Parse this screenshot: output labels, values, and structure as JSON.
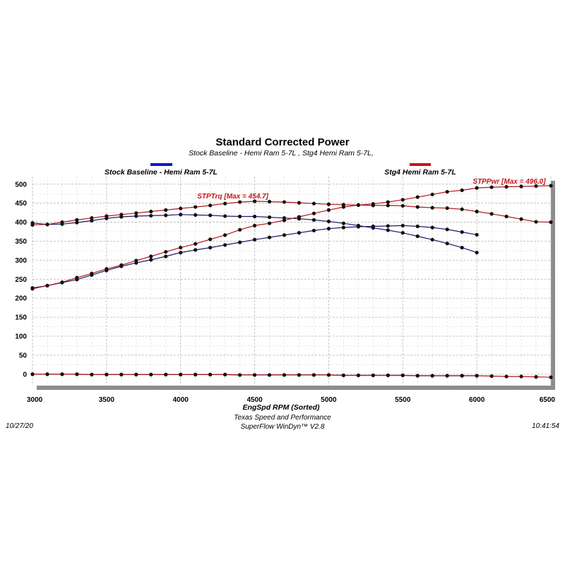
{
  "chart_data": {
    "type": "line",
    "title": "Standard Corrected Power",
    "subtitle": "Stock Baseline - Hemi Ram 5-7L , Stg4 Hemi Ram 5-7L,",
    "xlabel": "EngSpd  RPM  (Sorted)",
    "ylabel": "",
    "xlim": [
      3000,
      6500
    ],
    "ylim": [
      -30,
      520
    ],
    "x_ticks": [
      3000,
      3500,
      4000,
      4500,
      5000,
      5500,
      6000,
      6500
    ],
    "y_ticks": [
      0,
      50,
      100,
      150,
      200,
      250,
      300,
      350,
      400,
      450,
      500
    ],
    "grid": true,
    "legend": [
      {
        "name": "Stock Baseline - Hemi Ram 5-7L",
        "color": "#1018c8",
        "position": "top-left"
      },
      {
        "name": "Stg4 Hemi Ram 5-7L",
        "color": "#c8161b",
        "position": "top-right"
      }
    ],
    "annotations": [
      {
        "text": "STPTrq [Max = 454.7]",
        "x": 4400,
        "y": 455
      },
      {
        "text": "STPPwr [Max = 496.0]",
        "x": 6400,
        "y": 496
      }
    ],
    "series": [
      {
        "name": "Stock Baseline - Hemi Ram 5-7L",
        "color": "#1a1a6e",
        "x": [
          3000,
          3100,
          3200,
          3300,
          3400,
          3500,
          3600,
          3700,
          3800,
          3900,
          4000,
          4100,
          4200,
          4300,
          4400,
          4500,
          4600,
          4700,
          4800,
          4900,
          5000,
          5100,
          5200,
          5300,
          5400,
          5500,
          5600,
          5700,
          5800,
          5900,
          6000
        ],
        "values": [
          398,
          394,
          395,
          399,
          404,
          410,
          414,
          416,
          417,
          418,
          420,
          419,
          418,
          416,
          415,
          415,
          413,
          411,
          409,
          406,
          402,
          397,
          391,
          385,
          379,
          372,
          363,
          354,
          344,
          333,
          320
        ]
      },
      {
        "name": "Stock Baseline - Hemi Ram 5-7L",
        "color": "#1a1a6e",
        "x": [
          3000,
          3100,
          3200,
          3300,
          3400,
          3500,
          3600,
          3700,
          3800,
          3900,
          4000,
          4100,
          4200,
          4300,
          4400,
          4500,
          4600,
          4700,
          4800,
          4900,
          5000,
          5100,
          5200,
          5300,
          5400,
          5500,
          5600,
          5700,
          5800,
          5900,
          6000
        ],
        "values": [
          227,
          233,
          241,
          249,
          261,
          273,
          284,
          293,
          301,
          310,
          320,
          327,
          333,
          340,
          347,
          354,
          360,
          366,
          372,
          378,
          383,
          386,
          388,
          389,
          390,
          391,
          389,
          386,
          381,
          374,
          367
        ]
      },
      {
        "name": "Stock Baseline - Hemi Ram 5-7L",
        "color": "#1a1a6e",
        "x": [
          3000,
          3100,
          3200,
          3300,
          3400,
          3500,
          3600,
          3700,
          3800,
          3900,
          4000,
          4100,
          4200,
          4300,
          4400,
          4500,
          4600,
          4700,
          4800,
          4900,
          5000,
          5100,
          5200,
          5300,
          5400,
          5500,
          5600,
          5700,
          5800,
          5900,
          6000
        ],
        "values": [
          0,
          0,
          0,
          0,
          -1,
          -1,
          -1,
          -1,
          -1,
          -1,
          -1,
          -1,
          -1,
          -1,
          -2,
          -2,
          -2,
          -2,
          -2,
          -2,
          -2,
          -3,
          -3,
          -3,
          -3,
          -3,
          -4,
          -4,
          -4,
          -4,
          -4
        ]
      },
      {
        "name": "Stg4 Hemi Ram 5-7L",
        "color": "#b5161b",
        "x": [
          3000,
          3100,
          3200,
          3300,
          3400,
          3500,
          3600,
          3700,
          3800,
          3900,
          4000,
          4100,
          4200,
          4300,
          4400,
          4500,
          4600,
          4700,
          4800,
          4900,
          5000,
          5100,
          5200,
          5300,
          5400,
          5500,
          5600,
          5700,
          5800,
          5900,
          6000,
          6100,
          6200,
          6300,
          6400,
          6500
        ],
        "values": [
          393,
          394,
          400,
          406,
          411,
          416,
          420,
          424,
          428,
          432,
          436,
          440,
          444,
          449,
          453,
          455,
          454,
          453,
          451,
          449,
          447,
          446,
          445,
          444,
          444,
          443,
          440,
          438,
          437,
          434,
          428,
          422,
          415,
          408,
          401,
          400
        ]
      },
      {
        "name": "Stg4 Hemi Ram 5-7L",
        "color": "#b5161b",
        "x": [
          3000,
          3100,
          3200,
          3300,
          3400,
          3500,
          3600,
          3700,
          3800,
          3900,
          4000,
          4100,
          4200,
          4300,
          4400,
          4500,
          4600,
          4700,
          4800,
          4900,
          5000,
          5100,
          5200,
          5300,
          5400,
          5500,
          5600,
          5700,
          5800,
          5900,
          6000,
          6100,
          6200,
          6300,
          6400,
          6500
        ],
        "values": [
          225,
          233,
          242,
          254,
          265,
          277,
          287,
          299,
          310,
          322,
          333,
          343,
          355,
          366,
          380,
          391,
          397,
          405,
          414,
          423,
          432,
          440,
          445,
          448,
          453,
          459,
          466,
          473,
          480,
          484,
          490,
          492,
          493,
          494,
          495,
          496
        ]
      },
      {
        "name": "Stg4 Hemi Ram 5-7L",
        "color": "#b5161b",
        "x": [
          3000,
          3100,
          3200,
          3300,
          3400,
          3500,
          3600,
          3700,
          3800,
          3900,
          4000,
          4100,
          4200,
          4300,
          4400,
          4500,
          4600,
          4700,
          4800,
          4900,
          5000,
          5100,
          5200,
          5300,
          5400,
          5500,
          5600,
          5700,
          5800,
          5900,
          6000,
          6100,
          6200,
          6300,
          6400,
          6500
        ],
        "values": [
          0,
          0,
          0,
          0,
          -1,
          -1,
          -1,
          -1,
          -1,
          -1,
          -1,
          -1,
          -1,
          -1,
          -2,
          -2,
          -2,
          -2,
          -2,
          -2,
          -2,
          -3,
          -3,
          -3,
          -3,
          -3,
          -4,
          -4,
          -4,
          -4,
          -4,
          -5,
          -6,
          -6,
          -7,
          -8
        ]
      }
    ]
  },
  "footer": {
    "date": "10/27/20",
    "company": "Texas Speed and Performance",
    "software": "SuperFlow WinDyn™  V2.8",
    "time": "10:41:54"
  }
}
